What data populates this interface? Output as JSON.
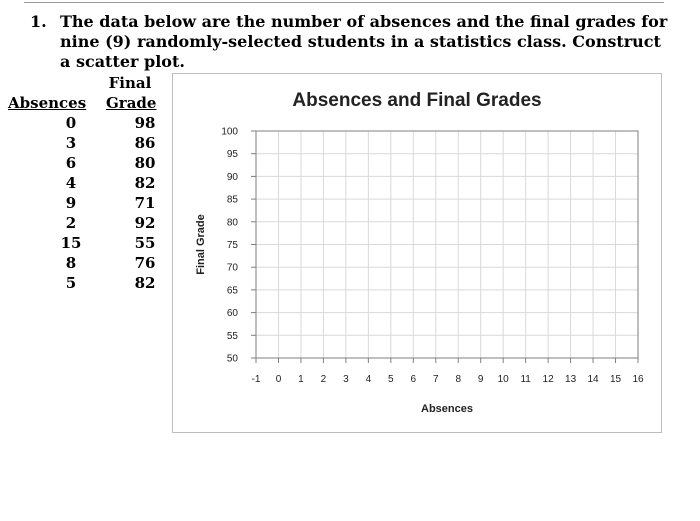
{
  "question": {
    "number": "1.",
    "text": "The data below are the number of absences and the final grades for nine (9) randomly-selected students in a statistics class. Construct a scatter plot."
  },
  "table": {
    "header_absences": "Absences",
    "header_final": "Final",
    "header_grade": "Grade",
    "absences": [
      "0",
      "3",
      "6",
      "4",
      "9",
      "2",
      "15",
      "8",
      "5"
    ],
    "grades": [
      "98",
      "86",
      "80",
      "82",
      "71",
      "92",
      "55",
      "76",
      "82"
    ]
  },
  "chart_data": {
    "type": "scatter",
    "title": "Absences and Final Grades",
    "xlabel": "Absences",
    "ylabel": "Final Grade",
    "xlim": [
      -1,
      16
    ],
    "ylim": [
      50,
      100
    ],
    "x_ticks": [
      "-1",
      "0",
      "1",
      "2",
      "3",
      "4",
      "5",
      "6",
      "7",
      "8",
      "9",
      "10",
      "11",
      "12",
      "13",
      "14",
      "15",
      "16"
    ],
    "y_ticks": [
      "50",
      "55",
      "60",
      "65",
      "70",
      "75",
      "80",
      "85",
      "90",
      "95",
      "100"
    ],
    "grid": true,
    "series": [],
    "colors": {
      "grid": "#d9d9d9",
      "axis": "#7f7f7f",
      "plot_border": "#7f7f7f"
    }
  }
}
